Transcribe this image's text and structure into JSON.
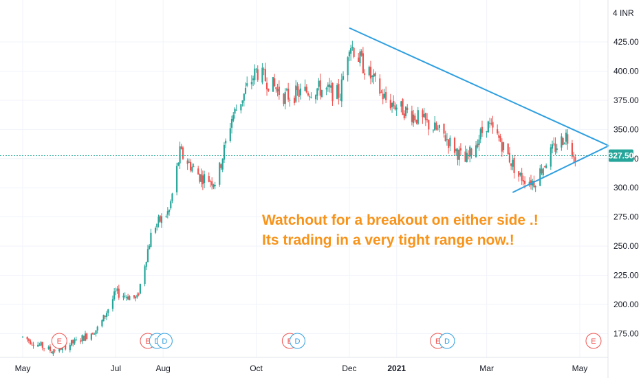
{
  "chart_data": {
    "type": "candlestick",
    "currency_label": "INR",
    "y_axis_top_label": "4",
    "ylim": [
      155,
      440
    ],
    "y_ticks": [
      175,
      200,
      225,
      250,
      275,
      300,
      325,
      350,
      375,
      400,
      425
    ],
    "y_tick_labels": [
      "175.00",
      "200.00",
      "225.00",
      "250.00",
      "275.00",
      "300.00",
      "325.00",
      "350.00",
      "375.00",
      "400.00",
      "425.00"
    ],
    "x_ticks": [
      "May",
      "Jul",
      "Aug",
      "Oct",
      "Dec",
      "2021",
      "Mar",
      "May"
    ],
    "last_price": 327.5,
    "last_price_label": "327.50",
    "price_path": [
      [
        "2020-05-01",
        172
      ],
      [
        "2020-05-20",
        160
      ],
      [
        "2020-06-05",
        168
      ],
      [
        "2020-06-20",
        180
      ],
      [
        "2020-07-01",
        210
      ],
      [
        "2020-07-15",
        205
      ],
      [
        "2020-07-25",
        265
      ],
      [
        "2020-08-05",
        280
      ],
      [
        "2020-08-12",
        330
      ],
      [
        "2020-08-25",
        310
      ],
      [
        "2020-09-05",
        305
      ],
      [
        "2020-09-15",
        360
      ],
      [
        "2020-10-01",
        400
      ],
      [
        "2020-10-20",
        378
      ],
      [
        "2020-11-10",
        385
      ],
      [
        "2020-11-25",
        380
      ],
      [
        "2020-12-01",
        425
      ],
      [
        "2020-12-10",
        405
      ],
      [
        "2020-12-25",
        375
      ],
      [
        "2021-01-15",
        360
      ],
      [
        "2021-02-01",
        345
      ],
      [
        "2021-02-15",
        322
      ],
      [
        "2021-03-01",
        355
      ],
      [
        "2021-03-10",
        340
      ],
      [
        "2021-03-22",
        310
      ],
      [
        "2021-04-01",
        305
      ],
      [
        "2021-04-12",
        330
      ],
      [
        "2021-04-22",
        345
      ],
      [
        "2021-04-28",
        327.5
      ]
    ],
    "colors": {
      "up": "#26a69a",
      "down": "#ef5350",
      "trendline": "#2f9fe0",
      "annotation": "#f7931a",
      "price_line": "#26a69a"
    },
    "annotations": [
      "Watchout for a breakout on either side .!",
      "Its trading in a very tight range now.!"
    ],
    "events": [
      {
        "label": "E",
        "type": "earnings",
        "date": "2020-05-25"
      },
      {
        "label": "E",
        "type": "earnings",
        "date": "2020-07-22"
      },
      {
        "label": "D",
        "type": "dividend",
        "date": "2020-07-28"
      },
      {
        "label": "D",
        "type": "dividend",
        "date": "2020-08-02"
      },
      {
        "label": "E",
        "type": "earnings",
        "date": "2020-10-23"
      },
      {
        "label": "D",
        "type": "dividend",
        "date": "2020-10-28"
      },
      {
        "label": "E",
        "type": "earnings",
        "date": "2021-01-28"
      },
      {
        "label": "D",
        "type": "dividend",
        "date": "2021-02-03"
      },
      {
        "label": "E",
        "type": "earnings",
        "date": "2021-05-10"
      }
    ]
  }
}
